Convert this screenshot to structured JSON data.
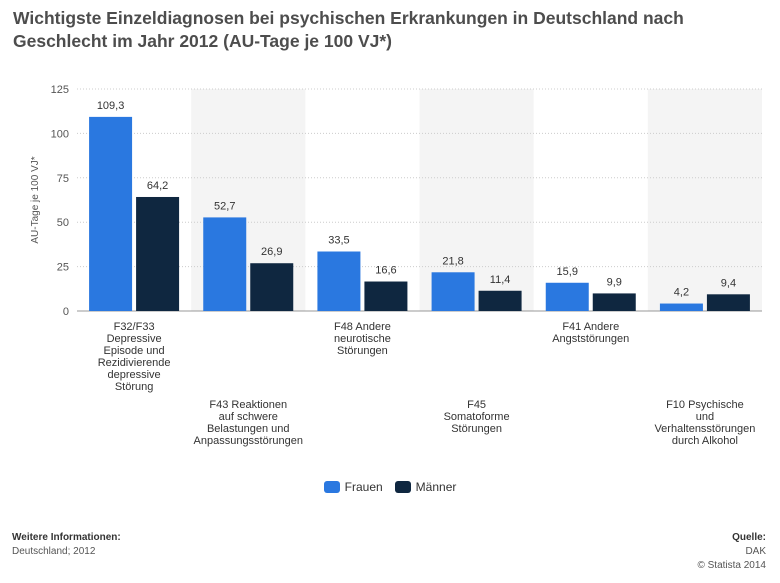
{
  "title": "Wichtigste Einzeldiagnosen bei psychischen Erkrankungen in Deutschland nach Geschlecht im Jahr 2012 (AU-Tage je 100 VJ*)",
  "footer": {
    "info_heading": "Weitere Informationen:",
    "info_text": "Deutschland; 2012",
    "source_heading": "Quelle:",
    "source_text": "DAK",
    "copyright": "© Statista 2014"
  },
  "colors": {
    "frauen": "#2a78e0",
    "maenner": "#0f2740",
    "band": "#f4f4f4",
    "grid": "#cccccc"
  },
  "chart_data": {
    "type": "bar",
    "title": "Wichtigste Einzeldiagnosen bei psychischen Erkrankungen in Deutschland nach Geschlecht im Jahr 2012 (AU-Tage je 100 VJ*)",
    "ylabel": "AU-Tage je 100 VJ*",
    "xlabel": "",
    "ylim": [
      0,
      125
    ],
    "yticks": [
      "0",
      "25",
      "50",
      "75",
      "100",
      "125"
    ],
    "grid": true,
    "legend_position": "bottom",
    "categories": [
      [
        "F32/F33",
        "Depressive",
        "Episode und",
        "Rezidivierende",
        "depressive",
        "Störung"
      ],
      [
        "F43 Reaktionen",
        "auf schwere",
        "Belastungen und",
        "Anpassungsstörungen"
      ],
      [
        "F48 Andere",
        "neurotische",
        "Störungen"
      ],
      [
        "F45",
        "Somatoforme",
        "Störungen"
      ],
      [
        "F41 Andere",
        "Angststörungen"
      ],
      [
        "F10 Psychische",
        "und",
        "Verhaltensstörungen",
        "durch Alkohol"
      ]
    ],
    "series": [
      {
        "name": "Frauen",
        "values": [
          109.3,
          52.7,
          33.5,
          21.8,
          15.9,
          4.2
        ],
        "labels": [
          "109,3",
          "52,7",
          "33,5",
          "21,8",
          "15,9",
          "4,2"
        ]
      },
      {
        "name": "Männer",
        "values": [
          64.2,
          26.9,
          16.6,
          11.4,
          9.9,
          9.4
        ],
        "labels": [
          "64,2",
          "26,9",
          "16,6",
          "11,4",
          "9,9",
          "9,4"
        ]
      }
    ]
  }
}
